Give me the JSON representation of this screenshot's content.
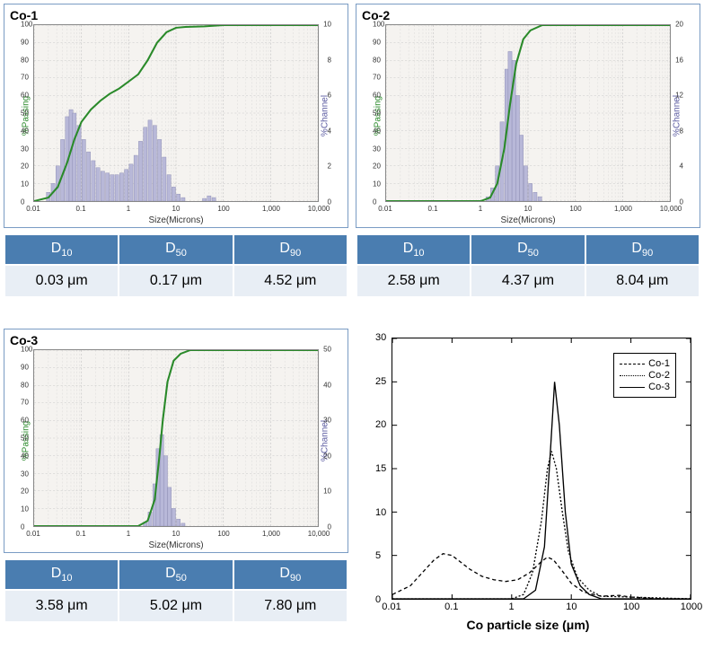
{
  "panels": {
    "co1": {
      "title": "Co-1",
      "ylabel_left": "%Passing",
      "ylabel_right": "%Channel",
      "xlabel": "Size(Microns)",
      "left_max": 100,
      "right_max": 10,
      "xticks": [
        "0.01",
        "0.1",
        "1",
        "10",
        "100",
        "1,000",
        "10,000"
      ],
      "yticks_left": [
        0,
        10,
        20,
        30,
        40,
        50,
        60,
        70,
        80,
        90,
        100
      ],
      "yticks_right": [
        0,
        2,
        4,
        6,
        8,
        10
      ],
      "bars": [
        {
          "logx": -1.7,
          "h": 0.5
        },
        {
          "logx": -1.6,
          "h": 1.0
        },
        {
          "logx": -1.5,
          "h": 2.0
        },
        {
          "logx": -1.4,
          "h": 3.5
        },
        {
          "logx": -1.3,
          "h": 4.8
        },
        {
          "logx": -1.22,
          "h": 5.2
        },
        {
          "logx": -1.15,
          "h": 5.0
        },
        {
          "logx": -1.05,
          "h": 4.3
        },
        {
          "logx": -0.95,
          "h": 3.5
        },
        {
          "logx": -0.85,
          "h": 2.8
        },
        {
          "logx": -0.75,
          "h": 2.3
        },
        {
          "logx": -0.65,
          "h": 1.9
        },
        {
          "logx": -0.55,
          "h": 1.7
        },
        {
          "logx": -0.45,
          "h": 1.6
        },
        {
          "logx": -0.35,
          "h": 1.5
        },
        {
          "logx": -0.25,
          "h": 1.5
        },
        {
          "logx": -0.15,
          "h": 1.6
        },
        {
          "logx": -0.05,
          "h": 1.8
        },
        {
          "logx": 0.05,
          "h": 2.1
        },
        {
          "logx": 0.15,
          "h": 2.6
        },
        {
          "logx": 0.25,
          "h": 3.4
        },
        {
          "logx": 0.35,
          "h": 4.2
        },
        {
          "logx": 0.45,
          "h": 4.6
        },
        {
          "logx": 0.55,
          "h": 4.3
        },
        {
          "logx": 0.65,
          "h": 3.5
        },
        {
          "logx": 0.75,
          "h": 2.5
        },
        {
          "logx": 0.85,
          "h": 1.5
        },
        {
          "logx": 0.95,
          "h": 0.8
        },
        {
          "logx": 1.05,
          "h": 0.4
        },
        {
          "logx": 1.15,
          "h": 0.2
        },
        {
          "logx": 1.6,
          "h": 0.15
        },
        {
          "logx": 1.7,
          "h": 0.3
        },
        {
          "logx": 1.8,
          "h": 0.2
        }
      ],
      "passing": [
        {
          "logx": -2.0,
          "y": 0
        },
        {
          "logx": -1.7,
          "y": 2
        },
        {
          "logx": -1.5,
          "y": 8
        },
        {
          "logx": -1.3,
          "y": 22
        },
        {
          "logx": -1.15,
          "y": 35
        },
        {
          "logx": -1.0,
          "y": 45
        },
        {
          "logx": -0.8,
          "y": 52
        },
        {
          "logx": -0.6,
          "y": 57
        },
        {
          "logx": -0.4,
          "y": 61
        },
        {
          "logx": -0.2,
          "y": 64
        },
        {
          "logx": 0.0,
          "y": 68
        },
        {
          "logx": 0.2,
          "y": 72
        },
        {
          "logx": 0.4,
          "y": 80
        },
        {
          "logx": 0.6,
          "y": 90
        },
        {
          "logx": 0.8,
          "y": 96
        },
        {
          "logx": 1.0,
          "y": 98.5
        },
        {
          "logx": 1.2,
          "y": 99
        },
        {
          "logx": 1.6,
          "y": 99.3
        },
        {
          "logx": 2.0,
          "y": 100
        },
        {
          "logx": 4.0,
          "y": 100
        }
      ],
      "table": {
        "d10": "0.03 μm",
        "d50": "0.17 μm",
        "d90": "4.52 μm"
      }
    },
    "co2": {
      "title": "Co-2",
      "ylabel_left": "%Passing",
      "ylabel_right": "%Channel",
      "xlabel": "Size(Microns)",
      "left_max": 100,
      "right_max": 20,
      "xticks": [
        "0.01",
        "0.1",
        "1",
        "10",
        "100",
        "1,000",
        "10,000"
      ],
      "yticks_left": [
        0,
        10,
        20,
        30,
        40,
        50,
        60,
        70,
        80,
        90,
        100
      ],
      "yticks_right": [
        0,
        4,
        8,
        12,
        16,
        20
      ],
      "bars": [
        {
          "logx": 0.15,
          "h": 0.5
        },
        {
          "logx": 0.25,
          "h": 1.5
        },
        {
          "logx": 0.35,
          "h": 4.0
        },
        {
          "logx": 0.45,
          "h": 9.0
        },
        {
          "logx": 0.55,
          "h": 15.0
        },
        {
          "logx": 0.62,
          "h": 17.0
        },
        {
          "logx": 0.7,
          "h": 16.0
        },
        {
          "logx": 0.78,
          "h": 12.0
        },
        {
          "logx": 0.86,
          "h": 7.5
        },
        {
          "logx": 0.95,
          "h": 4.0
        },
        {
          "logx": 1.05,
          "h": 2.0
        },
        {
          "logx": 1.15,
          "h": 1.0
        },
        {
          "logx": 1.25,
          "h": 0.5
        }
      ],
      "passing": [
        {
          "logx": -2.0,
          "y": 0
        },
        {
          "logx": 0.0,
          "y": 0
        },
        {
          "logx": 0.2,
          "y": 2
        },
        {
          "logx": 0.35,
          "y": 10
        },
        {
          "logx": 0.5,
          "y": 30
        },
        {
          "logx": 0.62,
          "y": 55
        },
        {
          "logx": 0.75,
          "y": 78
        },
        {
          "logx": 0.9,
          "y": 92
        },
        {
          "logx": 1.05,
          "y": 97
        },
        {
          "logx": 1.3,
          "y": 100
        },
        {
          "logx": 4.0,
          "y": 100
        }
      ],
      "table": {
        "d10": "2.58 μm",
        "d50": "4.37 μm",
        "d90": "8.04 μm"
      }
    },
    "co3": {
      "title": "Co-3",
      "ylabel_left": "%Passing",
      "ylabel_right": "%Channel",
      "xlabel": "Size(Microns)",
      "left_max": 100,
      "right_max": 50,
      "xticks": [
        "0.01",
        "0.1",
        "1",
        "10",
        "100",
        "1,000",
        "10,000"
      ],
      "yticks_left": [
        0,
        10,
        20,
        30,
        40,
        50,
        60,
        70,
        80,
        90,
        100
      ],
      "yticks_right": [
        0,
        10,
        20,
        30,
        40,
        50
      ],
      "bars": [
        {
          "logx": 0.35,
          "h": 1.0
        },
        {
          "logx": 0.45,
          "h": 4.0
        },
        {
          "logx": 0.55,
          "h": 12.0
        },
        {
          "logx": 0.62,
          "h": 22.0
        },
        {
          "logx": 0.7,
          "h": 26.0
        },
        {
          "logx": 0.78,
          "h": 20.0
        },
        {
          "logx": 0.86,
          "h": 11.0
        },
        {
          "logx": 0.95,
          "h": 5.0
        },
        {
          "logx": 1.05,
          "h": 2.0
        },
        {
          "logx": 1.15,
          "h": 0.8
        }
      ],
      "passing": [
        {
          "logx": -2.0,
          "y": 0
        },
        {
          "logx": 0.2,
          "y": 0
        },
        {
          "logx": 0.4,
          "y": 3
        },
        {
          "logx": 0.55,
          "y": 15
        },
        {
          "logx": 0.65,
          "y": 40
        },
        {
          "logx": 0.72,
          "y": 60
        },
        {
          "logx": 0.82,
          "y": 82
        },
        {
          "logx": 0.95,
          "y": 94
        },
        {
          "logx": 1.1,
          "y": 98
        },
        {
          "logx": 1.3,
          "y": 100
        },
        {
          "logx": 4.0,
          "y": 100
        }
      ],
      "table": {
        "d10": "3.58 μm",
        "d50": "5.02 μm",
        "d90": "7.80 μm"
      }
    }
  },
  "overlay": {
    "xlabel": "Co particle size (μm)",
    "ylim": [
      0,
      30
    ],
    "yticks": [
      0,
      5,
      10,
      15,
      20,
      25,
      30
    ],
    "xticks": [
      "0.01",
      "0.1",
      "1",
      "10",
      "100",
      "1000"
    ],
    "xlog_range": [
      -2,
      3
    ],
    "legend": [
      "Co-1",
      "Co-2",
      "Co-3"
    ],
    "series": {
      "co1": {
        "dash": "4,3",
        "pts": [
          {
            "logx": -2.0,
            "y": 0.5
          },
          {
            "logx": -1.7,
            "y": 1.5
          },
          {
            "logx": -1.5,
            "y": 3.0
          },
          {
            "logx": -1.3,
            "y": 4.5
          },
          {
            "logx": -1.15,
            "y": 5.2
          },
          {
            "logx": -1.0,
            "y": 5.0
          },
          {
            "logx": -0.85,
            "y": 4.2
          },
          {
            "logx": -0.7,
            "y": 3.4
          },
          {
            "logx": -0.5,
            "y": 2.6
          },
          {
            "logx": -0.3,
            "y": 2.2
          },
          {
            "logx": -0.1,
            "y": 2.0
          },
          {
            "logx": 0.1,
            "y": 2.2
          },
          {
            "logx": 0.3,
            "y": 3.0
          },
          {
            "logx": 0.5,
            "y": 4.3
          },
          {
            "logx": 0.6,
            "y": 4.8
          },
          {
            "logx": 0.7,
            "y": 4.5
          },
          {
            "logx": 0.85,
            "y": 3.2
          },
          {
            "logx": 1.0,
            "y": 1.8
          },
          {
            "logx": 1.2,
            "y": 0.8
          },
          {
            "logx": 1.5,
            "y": 0.3
          },
          {
            "logx": 1.8,
            "y": 0.4
          },
          {
            "logx": 2.0,
            "y": 0.2
          },
          {
            "logx": 2.5,
            "y": 0
          },
          {
            "logx": 3.0,
            "y": 0
          }
        ]
      },
      "co2": {
        "dash": "2,2",
        "pts": [
          {
            "logx": -2.0,
            "y": 0
          },
          {
            "logx": 0.0,
            "y": 0
          },
          {
            "logx": 0.2,
            "y": 0.5
          },
          {
            "logx": 0.35,
            "y": 3
          },
          {
            "logx": 0.5,
            "y": 9
          },
          {
            "logx": 0.6,
            "y": 15
          },
          {
            "logx": 0.67,
            "y": 17
          },
          {
            "logx": 0.75,
            "y": 15
          },
          {
            "logx": 0.85,
            "y": 10
          },
          {
            "logx": 0.95,
            "y": 5.5
          },
          {
            "logx": 1.1,
            "y": 2.5
          },
          {
            "logx": 1.3,
            "y": 1
          },
          {
            "logx": 1.5,
            "y": 0.3
          },
          {
            "logx": 3.0,
            "y": 0
          }
        ]
      },
      "co3": {
        "dash": "",
        "pts": [
          {
            "logx": -2.0,
            "y": 0
          },
          {
            "logx": 0.2,
            "y": 0
          },
          {
            "logx": 0.4,
            "y": 1
          },
          {
            "logx": 0.55,
            "y": 6
          },
          {
            "logx": 0.65,
            "y": 17
          },
          {
            "logx": 0.72,
            "y": 25
          },
          {
            "logx": 0.8,
            "y": 20
          },
          {
            "logx": 0.9,
            "y": 10
          },
          {
            "logx": 1.0,
            "y": 4
          },
          {
            "logx": 1.15,
            "y": 1.5
          },
          {
            "logx": 1.3,
            "y": 0.5
          },
          {
            "logx": 1.5,
            "y": 0
          },
          {
            "logx": 3.0,
            "y": 0
          }
        ]
      }
    }
  },
  "styling": {
    "bar_fill": "#b8b8d8",
    "bar_stroke": "#8888b0",
    "passing_color": "#2a8a2a",
    "grid_color": "#c8c8c8",
    "header_bg": "#4a7db0",
    "header_fg": "#ffffff",
    "cell_bg": "#e8eef5",
    "plot_bg": "#f5f3f0"
  },
  "labels": {
    "d10": "D",
    "d10_sub": "10",
    "d50": "D",
    "d50_sub": "50",
    "d90": "D",
    "d90_sub": "90"
  }
}
